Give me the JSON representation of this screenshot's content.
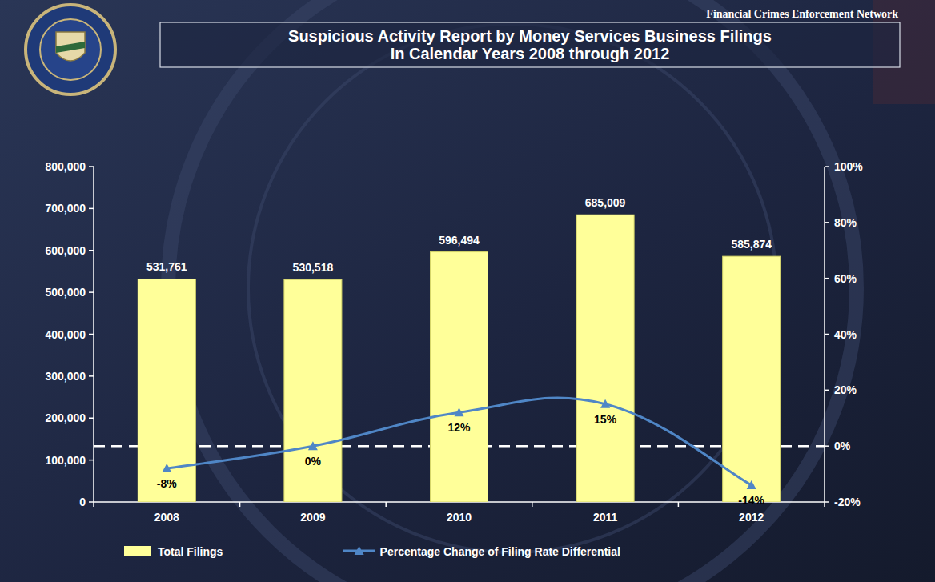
{
  "chart_data": {
    "type": "bar",
    "subtitle": "Financial Crimes Enforcement Network",
    "title": [
      "Suspicious Activity Report by Money Services Business Filings",
      "In Calendar Years 2008 through 2012"
    ],
    "categories": [
      "2008",
      "2009",
      "2010",
      "2011",
      "2012"
    ],
    "series": [
      {
        "name": "Total Filings",
        "type": "bar",
        "color": "#ffff99",
        "values": [
          531761,
          530518,
          596494,
          685009,
          585874
        ],
        "value_labels": [
          "531,761",
          "530,518",
          "596,494",
          "685,009",
          "585,874"
        ]
      },
      {
        "name": "Percentage Change of Filing Rate Differential",
        "type": "line",
        "axis": "y2",
        "color": "#4f86c6",
        "marker": "triangle",
        "values": [
          -8,
          0,
          12,
          15,
          -14
        ],
        "value_labels": [
          "-8%",
          "0%",
          "12%",
          "15%",
          "-14%"
        ]
      }
    ],
    "data_labels": true,
    "ylim": [
      0,
      800000
    ],
    "yticks": [
      0,
      {
        "value": 100000,
        "label": "100,000"
      },
      {
        "value": 200000,
        "label": "200,000"
      },
      {
        "value": 300000,
        "label": "300,000"
      },
      {
        "value": 400000,
        "label": "400,000"
      },
      {
        "value": 500000,
        "label": "500,000"
      },
      {
        "value": 600000,
        "label": "600,000"
      },
      {
        "value": 700000,
        "label": "700,000"
      },
      {
        "value": 800000,
        "label": "800,000"
      }
    ],
    "y2lim": [
      -20,
      100
    ],
    "y2ticks": [
      {
        "value": -20,
        "label": "-20%"
      },
      {
        "value": 0,
        "label": "0%"
      },
      {
        "value": 20,
        "label": "20%"
      },
      {
        "value": 40,
        "label": "40%"
      },
      {
        "value": 60,
        "label": "60%"
      },
      {
        "value": 80,
        "label": "80%"
      },
      {
        "value": 100,
        "label": "100%"
      }
    ],
    "grid": false,
    "legend": "bottom"
  }
}
